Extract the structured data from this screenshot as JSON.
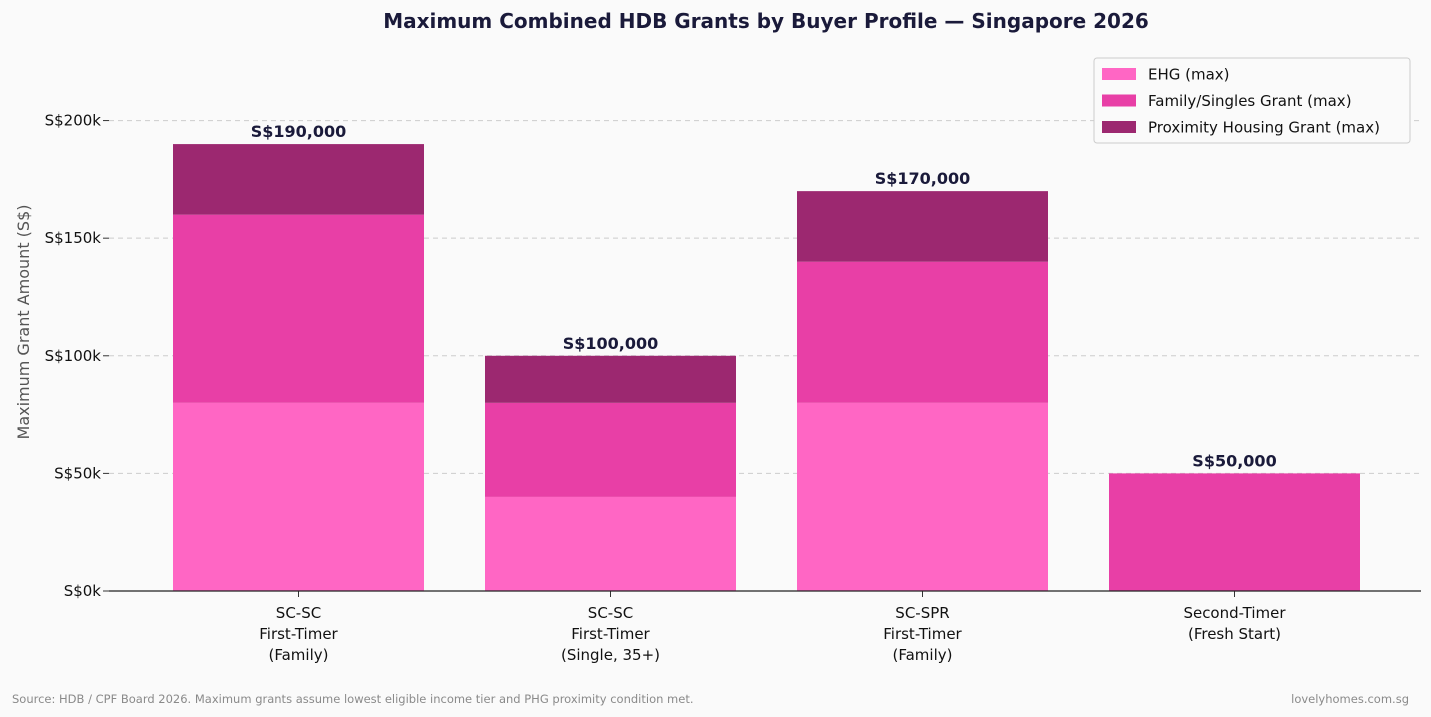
{
  "chart_data": {
    "type": "bar",
    "stacked": true,
    "title": "Maximum Combined HDB Grants by Buyer Profile — Singapore 2026",
    "ylabel": "Maximum Grant Amount (S$)",
    "xlabel": "",
    "ylim": [
      0,
      230000
    ],
    "yticks": [
      0,
      50000,
      100000,
      150000,
      200000
    ],
    "ytick_labels": [
      "S$0k",
      "S$50k",
      "S$100k",
      "S$150k",
      "S$200k"
    ],
    "grid": "y-dashed",
    "legend_position": "top-right",
    "categories": [
      [
        "SC-SC",
        "First-Timer",
        "(Family)"
      ],
      [
        "SC-SC",
        "First-Timer",
        "(Single, 35+)"
      ],
      [
        "SC-SPR",
        "First-Timer",
        "(Family)"
      ],
      [
        "Second-Timer",
        "(Fresh Start)"
      ]
    ],
    "series": [
      {
        "name": "EHG (max)",
        "color": "#ff66c4",
        "values": [
          80000,
          40000,
          80000,
          0
        ]
      },
      {
        "name": "Family/Singles Grant (max)",
        "color": "#e83fa6",
        "values": [
          80000,
          40000,
          60000,
          50000
        ]
      },
      {
        "name": "Proximity Housing Grant (max)",
        "color": "#9c2870",
        "values": [
          30000,
          20000,
          30000,
          0
        ]
      }
    ],
    "totals": [
      190000,
      100000,
      170000,
      50000
    ],
    "total_labels": [
      "S$190,000",
      "S$100,000",
      "S$170,000",
      "S$50,000"
    ]
  },
  "footer": {
    "source": "Source: HDB / CPF Board 2026. Maximum grants assume lowest eligible income tier and PHG proximity condition met.",
    "credit": "lovelyhomes.com.sg"
  }
}
